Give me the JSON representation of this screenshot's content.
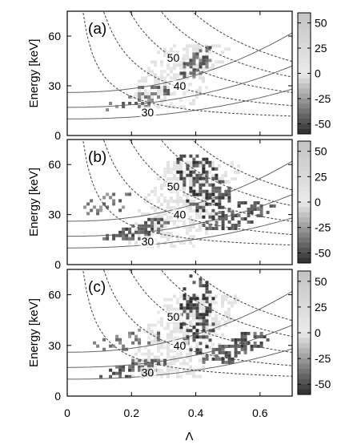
{
  "chart_data": [
    {
      "type": "heatmap",
      "panel_label": "(a)",
      "ylabel": "Energy [keV]",
      "xlim": [
        0,
        0.7
      ],
      "ylim": [
        0,
        75
      ],
      "yticks": [
        "0",
        "30",
        "60"
      ],
      "ytick_values": [
        0,
        30,
        60
      ],
      "contour_labels": [
        {
          "text": "50",
          "x": 0.33,
          "y": 46
        },
        {
          "text": "40",
          "x": 0.35,
          "y": 29
        },
        {
          "text": "30",
          "x": 0.25,
          "y": 13
        }
      ],
      "clusters": [
        {
          "x": [
            0.03,
            0.65
          ],
          "y": [
            18,
            55
          ],
          "level": 10,
          "density": 0.55,
          "tilt": 55
        },
        {
          "x": [
            0.1,
            0.33
          ],
          "y": [
            16,
            30
          ],
          "level": -35,
          "density": 0.3,
          "tilt": 20
        },
        {
          "x": [
            0.33,
            0.47
          ],
          "y": [
            36,
            54
          ],
          "level": -40,
          "density": 0.5,
          "tilt": 50
        }
      ]
    },
    {
      "type": "heatmap",
      "panel_label": "(b)",
      "ylabel": "Energy [keV]",
      "xlim": [
        0,
        0.7
      ],
      "ylim": [
        0,
        75
      ],
      "yticks": [
        "0",
        "30",
        "60"
      ],
      "ytick_values": [
        0,
        30,
        60
      ],
      "contour_labels": [
        {
          "text": "50",
          "x": 0.33,
          "y": 46
        },
        {
          "text": "40",
          "x": 0.35,
          "y": 29
        },
        {
          "text": "30",
          "x": 0.25,
          "y": 13
        }
      ],
      "clusters": [
        {
          "x": [
            0.03,
            0.68
          ],
          "y": [
            12,
            62
          ],
          "level": 10,
          "density": 0.6,
          "tilt": 60
        },
        {
          "x": [
            0.1,
            0.35
          ],
          "y": [
            16,
            28
          ],
          "level": -45,
          "density": 0.65,
          "tilt": 22
        },
        {
          "x": [
            0.3,
            0.55
          ],
          "y": [
            28,
            66
          ],
          "level": -50,
          "density": 0.6,
          "tilt": 120
        },
        {
          "x": [
            0.4,
            0.66
          ],
          "y": [
            22,
            38
          ],
          "level": -45,
          "density": 0.6,
          "tilt": 25
        },
        {
          "x": [
            0.05,
            0.2
          ],
          "y": [
            30,
            45
          ],
          "level": -35,
          "density": 0.3,
          "tilt": 15
        }
      ]
    },
    {
      "type": "heatmap",
      "panel_label": "(c)",
      "ylabel": "Energy [keV]",
      "xlabel": "Λ",
      "xlim": [
        0,
        0.7
      ],
      "ylim": [
        0,
        75
      ],
      "xticks": [
        "0",
        "0.2",
        "0.4",
        "0.6"
      ],
      "xtick_values": [
        0,
        0.2,
        0.4,
        0.6
      ],
      "yticks": [
        "0",
        "30",
        "60"
      ],
      "ytick_values": [
        0,
        30,
        60
      ],
      "contour_labels": [
        {
          "text": "50",
          "x": 0.33,
          "y": 46
        },
        {
          "text": "40",
          "x": 0.35,
          "y": 29
        },
        {
          "text": "30",
          "x": 0.25,
          "y": 13
        }
      ],
      "clusters": [
        {
          "x": [
            0.03,
            0.68
          ],
          "y": [
            12,
            60
          ],
          "level": 10,
          "density": 0.6,
          "tilt": 60
        },
        {
          "x": [
            0.1,
            0.32
          ],
          "y": [
            12,
            22
          ],
          "level": -45,
          "density": 0.55,
          "tilt": 15
        },
        {
          "x": [
            0.33,
            0.47
          ],
          "y": [
            26,
            72
          ],
          "level": -50,
          "density": 0.55,
          "tilt": 90
        },
        {
          "x": [
            0.42,
            0.62
          ],
          "y": [
            20,
            38
          ],
          "level": -45,
          "density": 0.6,
          "tilt": 25
        },
        {
          "x": [
            0.08,
            0.3
          ],
          "y": [
            28,
            40
          ],
          "level": -35,
          "density": 0.3,
          "tilt": 10
        }
      ]
    }
  ],
  "colorbar": {
    "ticks": [
      "50",
      "25",
      "0",
      "-25",
      "-50"
    ],
    "tick_values": [
      50,
      25,
      0,
      -25,
      -50
    ],
    "range": [
      -60,
      60
    ]
  }
}
